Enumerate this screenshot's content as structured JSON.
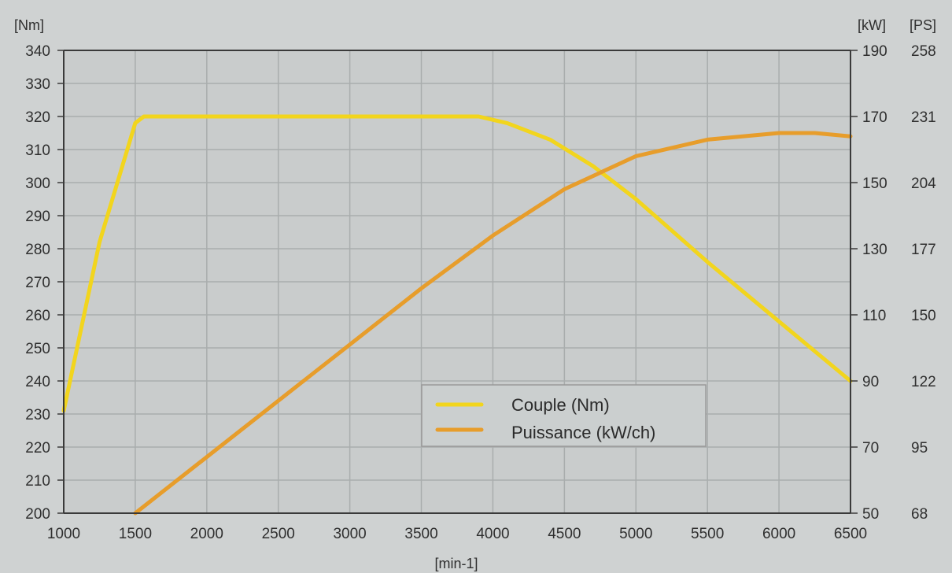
{
  "chart_data": {
    "type": "line",
    "x_unit_label": "[min-1]",
    "y_left_unit_label": "[Nm]",
    "y_right_unit_label_1": "[kW]",
    "y_right_unit_label_2": "[PS]",
    "x_ticks": [
      1000,
      1500,
      2000,
      2500,
      3000,
      3500,
      4000,
      4500,
      5000,
      5500,
      6000,
      6500
    ],
    "xlim": [
      1000,
      6500
    ],
    "y_left_ticks": [
      200,
      210,
      220,
      230,
      240,
      250,
      260,
      270,
      280,
      290,
      300,
      310,
      320,
      330,
      340
    ],
    "ylim_left": [
      200,
      340
    ],
    "y_right_ticks_kw": [
      50,
      70,
      90,
      110,
      130,
      150,
      170,
      190
    ],
    "y_right_ticks_ps": [
      68,
      95,
      122,
      150,
      177,
      204,
      231,
      258
    ],
    "ylim_right_kw": [
      50,
      190
    ],
    "grid": true,
    "legend_position": "center-bottom",
    "series": [
      {
        "name": "Couple (Nm)",
        "axis": "left",
        "color": "#f2d51d",
        "x": [
          1000,
          1250,
          1500,
          1560,
          2000,
          2500,
          3000,
          3500,
          3900,
          4100,
          4400,
          4700,
          5000,
          5500,
          6000,
          6500
        ],
        "y": [
          231,
          282,
          318,
          320,
          320,
          320,
          320,
          320,
          320,
          318,
          313,
          305,
          295,
          276,
          258,
          240
        ]
      },
      {
        "name": "Puissance (kW/ch)",
        "axis": "right",
        "color": "#e79d2b",
        "x": [
          1500,
          2000,
          2500,
          3000,
          3500,
          4000,
          4500,
          5000,
          5500,
          6000,
          6250,
          6500
        ],
        "y": [
          50,
          67,
          84,
          101,
          118,
          134,
          148,
          158,
          163,
          165,
          165,
          164
        ]
      }
    ]
  }
}
